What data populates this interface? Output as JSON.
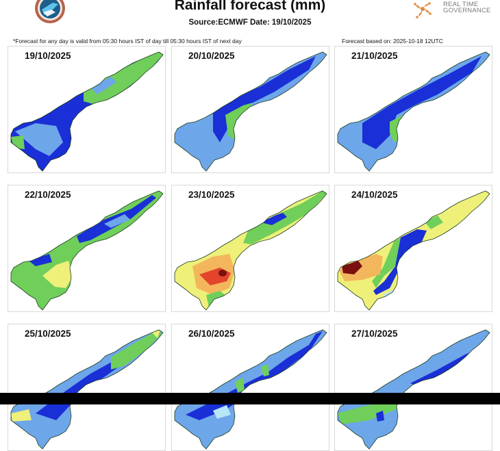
{
  "header": {
    "title": "Rainfall forecast (mm)",
    "subtitle": "Source:ECMWF Date: 19/10/2025",
    "validity_note": "*Forecast for any day is valid from 05:30 hours IST of day till 05:30 hours IST of next day",
    "based_on": "Forecast based on: 2025-10-18 12UTC",
    "left_logo": "state-emblem",
    "right_logo": {
      "name": "rtg-logo",
      "text_line1": "REAL TIME",
      "text_line2": "GOVERNANCE"
    }
  },
  "colors": {
    "light_blue": "#6ea6ea",
    "dark_blue": "#1a2fd6",
    "pale_blue": "#b6e6f7",
    "green": "#6fcf5a",
    "dark_green": "#2e9e3a",
    "yellow": "#eef07a",
    "orange": "#f4b65c",
    "red": "#e2452c",
    "dark_red": "#7a1010"
  },
  "panels": [
    {
      "date": "19/10/2025",
      "palette": [
        "light_blue",
        "dark_blue",
        "green"
      ]
    },
    {
      "date": "20/10/2025",
      "palette": [
        "light_blue",
        "dark_blue",
        "green"
      ]
    },
    {
      "date": "21/10/2025",
      "palette": [
        "light_blue",
        "dark_blue",
        "green"
      ]
    },
    {
      "date": "22/10/2025",
      "palette": [
        "green",
        "yellow",
        "dark_blue",
        "light_blue"
      ]
    },
    {
      "date": "23/10/2025",
      "palette": [
        "yellow",
        "orange",
        "red",
        "dark_red",
        "green",
        "dark_blue"
      ]
    },
    {
      "date": "24/10/2025",
      "palette": [
        "orange",
        "dark_red",
        "yellow",
        "green",
        "dark_blue",
        "light_blue",
        "pale_blue"
      ]
    },
    {
      "date": "25/10/2025",
      "palette": [
        "light_blue",
        "dark_blue",
        "green",
        "yellow"
      ]
    },
    {
      "date": "26/10/2025",
      "palette": [
        "light_blue",
        "dark_blue",
        "pale_blue",
        "green"
      ]
    },
    {
      "date": "27/10/2025",
      "palette": [
        "light_blue",
        "dark_blue",
        "green"
      ]
    }
  ]
}
